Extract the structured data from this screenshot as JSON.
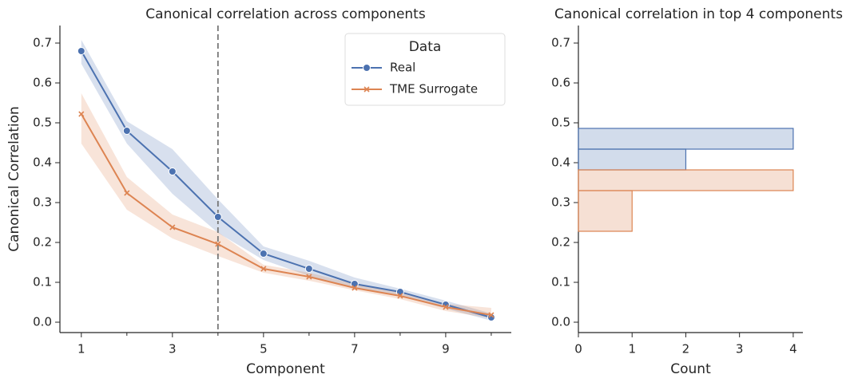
{
  "chart_data": [
    {
      "type": "line",
      "title": "Canonical correlation across components",
      "xlabel": "Component",
      "ylabel": "Canonical Correlation",
      "x": [
        1,
        2,
        3,
        4,
        5,
        6,
        7,
        8,
        9,
        10
      ],
      "series": [
        {
          "name": "Real",
          "color": "#4c72b0",
          "marker": "o",
          "values": [
            0.68,
            0.48,
            0.378,
            0.264,
            0.172,
            0.134,
            0.096,
            0.076,
            0.044,
            0.012
          ],
          "upper": [
            0.708,
            0.504,
            0.434,
            0.308,
            0.19,
            0.154,
            0.112,
            0.084,
            0.054,
            0.022
          ],
          "lower": [
            0.648,
            0.448,
            0.322,
            0.224,
            0.156,
            0.116,
            0.084,
            0.066,
            0.034,
            0.004
          ]
        },
        {
          "name": "TME Surrogate",
          "color": "#dd8452",
          "marker": "x",
          "values": [
            0.522,
            0.324,
            0.238,
            0.196,
            0.134,
            0.114,
            0.086,
            0.066,
            0.038,
            0.018
          ],
          "upper": [
            0.574,
            0.364,
            0.27,
            0.226,
            0.144,
            0.124,
            0.096,
            0.076,
            0.046,
            0.036
          ],
          "lower": [
            0.448,
            0.282,
            0.21,
            0.166,
            0.124,
            0.104,
            0.08,
            0.058,
            0.028,
            0.01
          ]
        }
      ],
      "vline": 4,
      "xlim": [
        0.53,
        10.44
      ],
      "xticks": [
        1,
        3,
        5,
        7,
        9
      ],
      "xminorticks": [
        2,
        4,
        6,
        8,
        10
      ],
      "ylim": [
        -0.026,
        0.744
      ],
      "yticks": [
        {
          "value": 0,
          "label": "0.0"
        },
        0.1,
        0.2,
        0.3,
        0.4,
        0.5,
        0.6,
        0.7
      ],
      "legend_title": "Data",
      "legend": "upper right"
    },
    {
      "type": "histogram",
      "orientation": "horizontal",
      "title": "Canonical correlation in top 4 components",
      "xlabel": "Count",
      "series": [
        {
          "name": "Real",
          "color": "#4c72b0",
          "bins": [
            0.382,
            0.434,
            0.486
          ],
          "counts": [
            2,
            4
          ]
        },
        {
          "name": "TME Surrogate",
          "color": "#dd8452",
          "bins": [
            0.228,
            0.33,
            0.382
          ],
          "counts": [
            1,
            4
          ]
        }
      ],
      "xlim": [
        0,
        4.18
      ],
      "xticks": [
        0,
        1,
        2,
        3,
        4
      ],
      "ylim": [
        -0.026,
        0.744
      ],
      "yticks": [
        {
          "value": 0,
          "label": "0.0"
        },
        0.1,
        0.2,
        0.3,
        0.4,
        0.5,
        0.6,
        0.7
      ]
    }
  ]
}
